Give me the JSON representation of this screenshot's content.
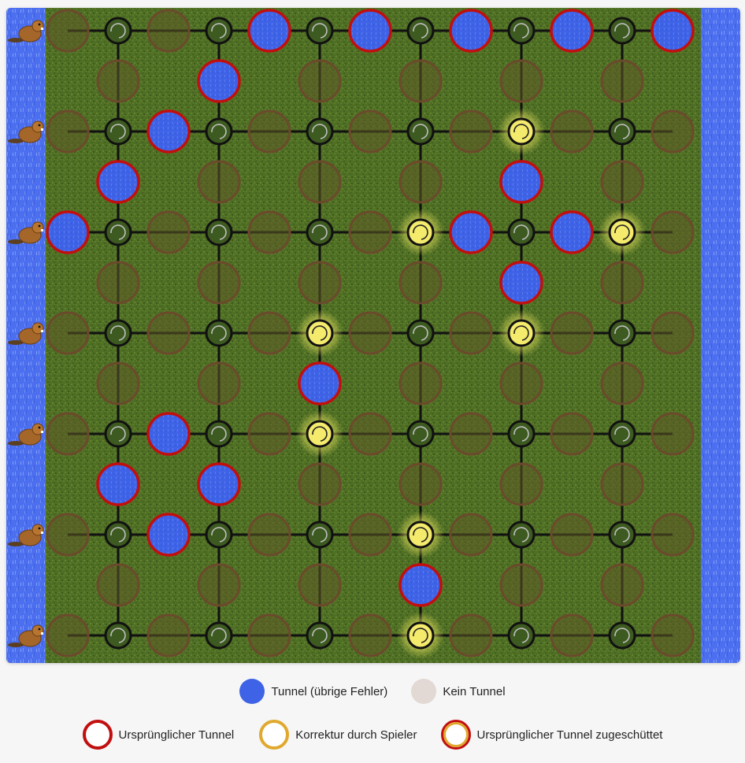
{
  "board": {
    "rows": [
      [
        "E",
        "S",
        "E",
        "S",
        "W",
        "S",
        "W",
        "S",
        "W",
        "S",
        "W",
        "S",
        "W"
      ],
      [
        "_",
        "E",
        "_",
        "W",
        "_",
        "E",
        "_",
        "E",
        "_",
        "E",
        "_",
        "E",
        "_"
      ],
      [
        "E",
        "S",
        "W",
        "S",
        "E",
        "S",
        "E",
        "S",
        "E",
        "Y",
        "E",
        "S",
        "E"
      ],
      [
        "_",
        "W",
        "_",
        "E",
        "_",
        "E",
        "_",
        "E",
        "_",
        "W",
        "_",
        "E",
        "_"
      ],
      [
        "W",
        "S",
        "E",
        "S",
        "E",
        "S",
        "E",
        "Y",
        "W",
        "S",
        "W",
        "Y",
        "E"
      ],
      [
        "_",
        "E",
        "_",
        "E",
        "_",
        "E",
        "_",
        "E",
        "_",
        "W",
        "_",
        "E",
        "_"
      ],
      [
        "E",
        "S",
        "E",
        "S",
        "E",
        "Y",
        "E",
        "S",
        "E",
        "Y",
        "E",
        "S",
        "E"
      ],
      [
        "_",
        "E",
        "_",
        "E",
        "_",
        "W",
        "_",
        "E",
        "_",
        "E",
        "_",
        "E",
        "_"
      ],
      [
        "E",
        "S",
        "W",
        "S",
        "E",
        "Y",
        "E",
        "S",
        "E",
        "S",
        "E",
        "S",
        "E"
      ],
      [
        "_",
        "W",
        "_",
        "W",
        "_",
        "E",
        "_",
        "E",
        "_",
        "E",
        "_",
        "E",
        "_"
      ],
      [
        "E",
        "S",
        "W",
        "S",
        "E",
        "S",
        "E",
        "Y",
        "E",
        "S",
        "E",
        "S",
        "E"
      ],
      [
        "_",
        "E",
        "_",
        "E",
        "_",
        "E",
        "_",
        "W",
        "_",
        "E",
        "_",
        "E",
        "_"
      ],
      [
        "E",
        "S",
        "E",
        "S",
        "E",
        "S",
        "E",
        "Y",
        "E",
        "S",
        "E",
        "S",
        "E"
      ]
    ],
    "beaver_rows": [
      0,
      2,
      4,
      6,
      8,
      10,
      12
    ],
    "colors": {
      "water": "#3f63e6",
      "error_ring": "#c10f0f",
      "empty_fill": "#5e5a27",
      "empty_ring": "#6b4a2c",
      "player_fix": "#f4ea6c",
      "grass": "#4f6f24",
      "river": "#4c6ff0"
    }
  },
  "legend": {
    "water_label": "Tunnel (übrige Fehler)",
    "none_label": "Kein Tunnel",
    "original_label": "Ursprünglicher Tunnel",
    "correction_label": "Korrektur durch Spieler",
    "filled_label": "Ursprünglicher Tunnel zugeschüttet",
    "water_color": "#3f63e6",
    "none_color": "#e2d8d4",
    "original_color": "#c10f0f",
    "correction_color": "#e0a92e"
  }
}
